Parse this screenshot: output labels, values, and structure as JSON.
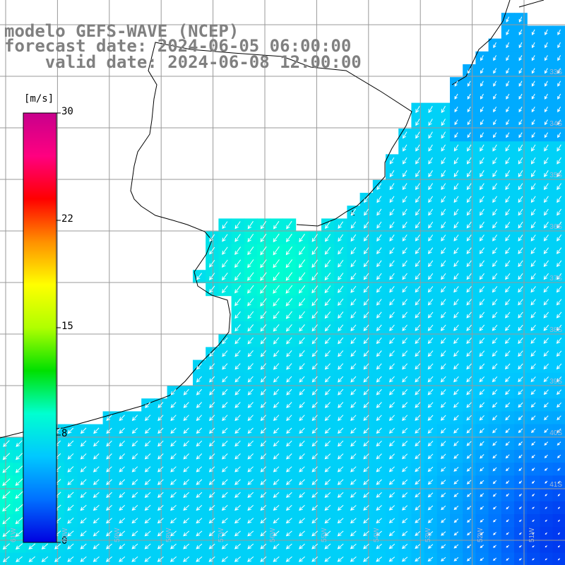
{
  "title": {
    "model": "modelo GEFS-WAVE (NCEP)",
    "forecast": "forecast date: 2024-06-05 06:00:00",
    "valid": "    valid date: 2024-06-08 12:00:00"
  },
  "colorbar": {
    "unit": "[m/s]",
    "min": 0,
    "max": 30,
    "ticks": [
      {
        "value": 30,
        "label": "30"
      },
      {
        "value": 22.5,
        "label": "22"
      },
      {
        "value": 15,
        "label": "15"
      },
      {
        "value": 7.5,
        "label": "8"
      },
      {
        "value": 0,
        "label": "0"
      }
    ],
    "colors": [
      "#0000e0",
      "#0070ff",
      "#00c8ff",
      "#00ffd0",
      "#00e000",
      "#b0ff00",
      "#ffff00",
      "#ff9000",
      "#ff0000",
      "#ff0080",
      "#c8008c"
    ]
  },
  "lat_labels": [
    "33S",
    "34S",
    "35S",
    "36S",
    "37S",
    "38S",
    "39S",
    "40S",
    "41S"
  ],
  "lon_labels": [
    "61W",
    "60W",
    "59W",
    "58W",
    "57W",
    "56W",
    "55W",
    "54W",
    "53W",
    "52W",
    "51W"
  ],
  "land_color": "#ffffff",
  "grid_color": "#999999",
  "coast_color": "#000000",
  "wind": {
    "direction": "southwest",
    "typical_speed_ms": 6.5,
    "peak_speed_ms": 9,
    "min_speed_ms": 1.5
  }
}
